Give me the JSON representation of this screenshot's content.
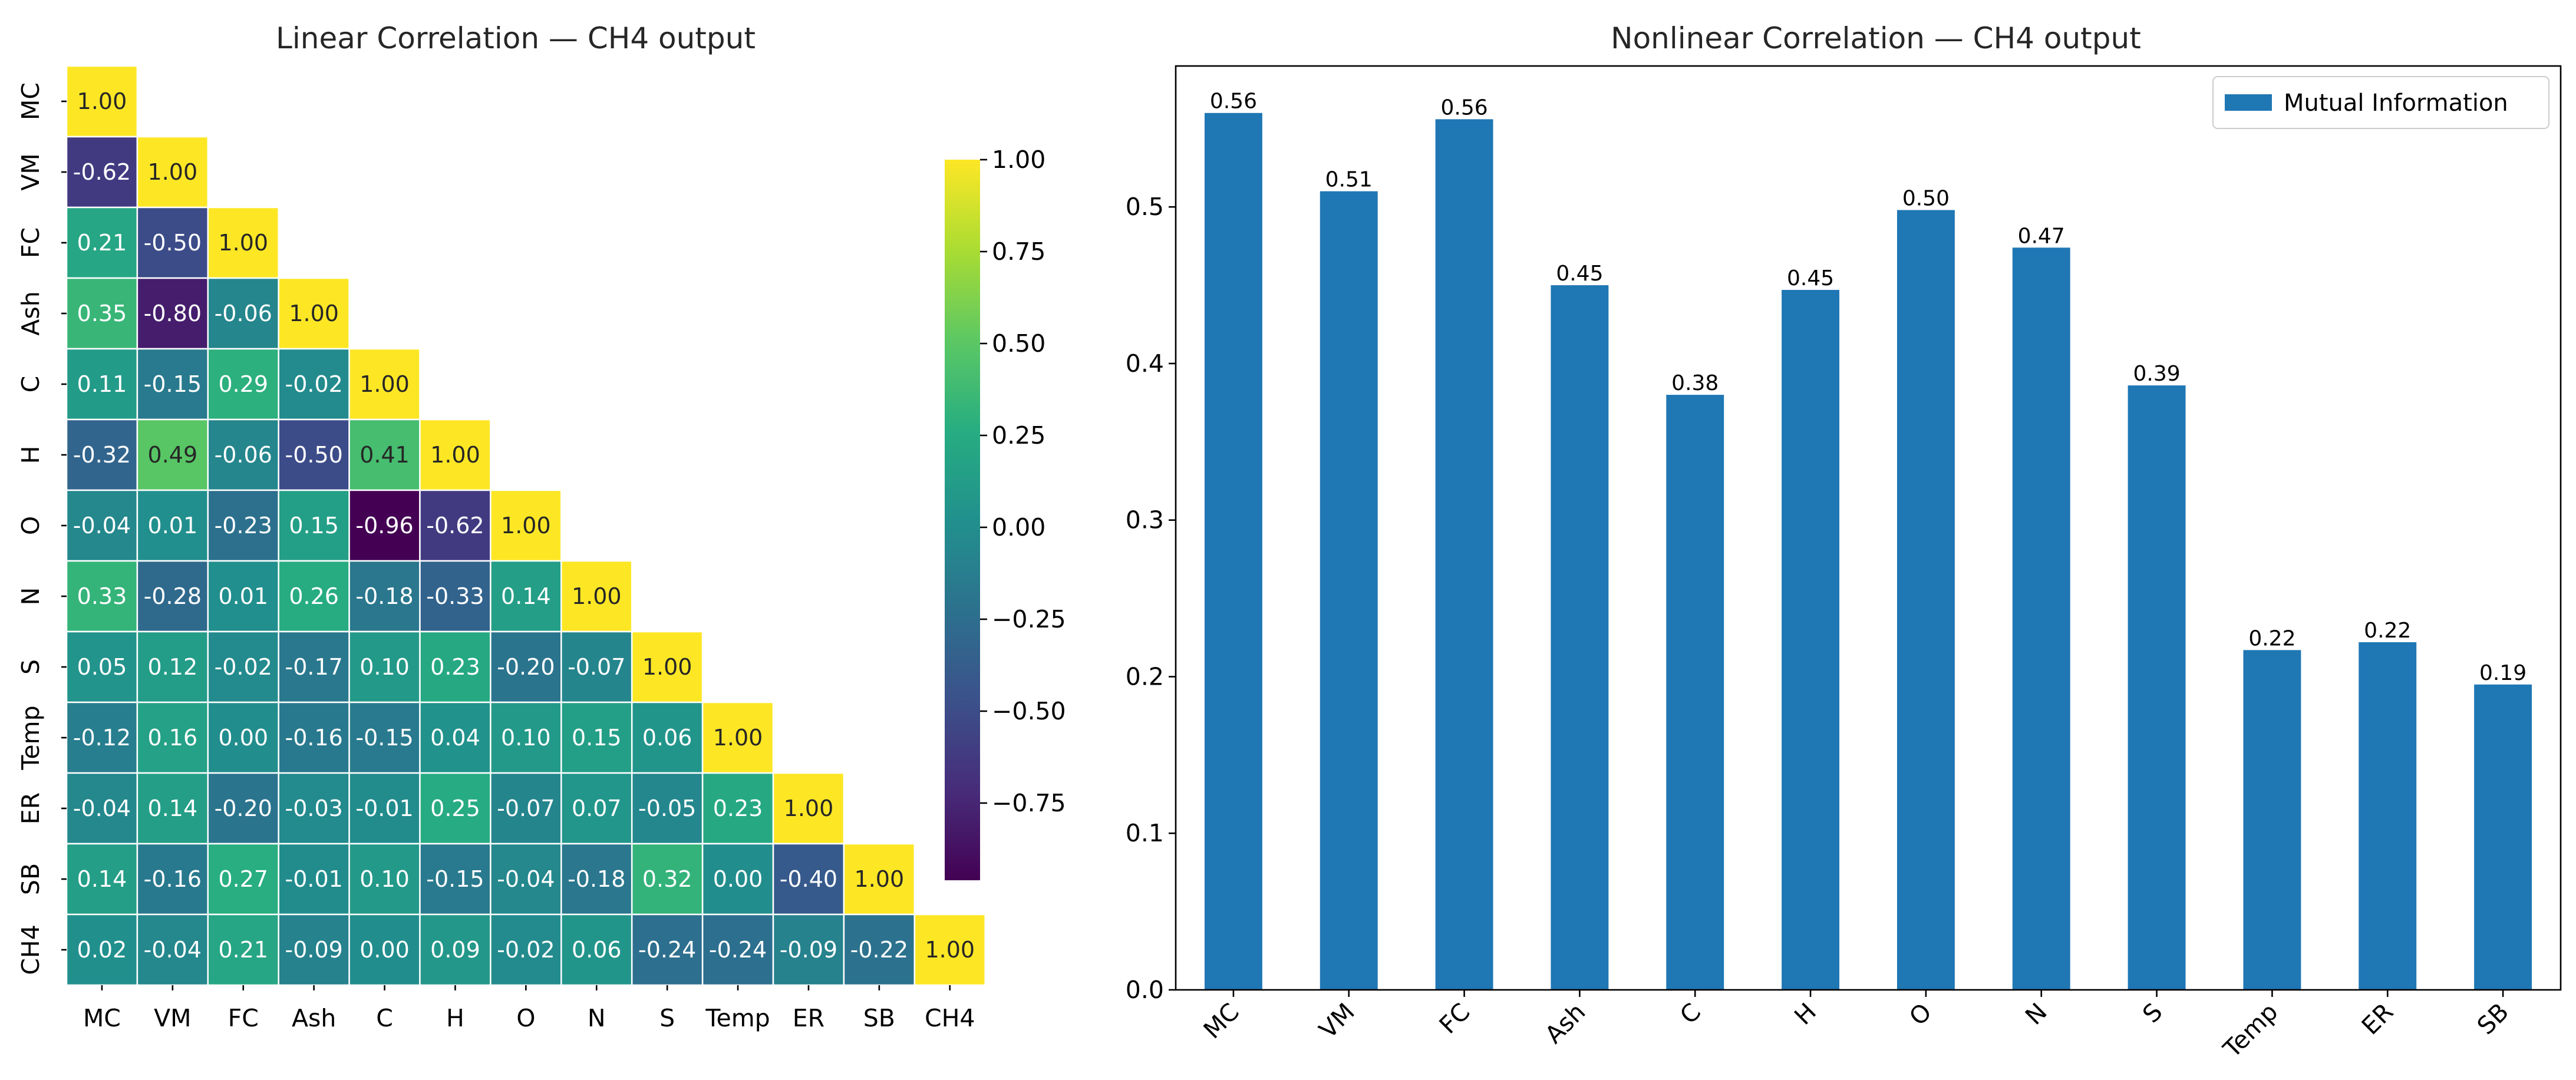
{
  "chart_data": [
    {
      "type": "heatmap",
      "title": "Linear Correlation — CH4 output",
      "variables": [
        "MC",
        "VM",
        "FC",
        "Ash",
        "C",
        "H",
        "O",
        "N",
        "S",
        "Temp",
        "ER",
        "SB",
        "CH4"
      ],
      "matrix_lower": [
        [
          1.0
        ],
        [
          -0.62,
          1.0
        ],
        [
          0.21,
          -0.5,
          1.0
        ],
        [
          0.35,
          -0.8,
          -0.06,
          1.0
        ],
        [
          0.11,
          -0.15,
          0.29,
          -0.02,
          1.0
        ],
        [
          -0.32,
          0.49,
          -0.06,
          -0.5,
          0.41,
          1.0
        ],
        [
          -0.04,
          0.01,
          -0.23,
          0.15,
          -0.96,
          -0.62,
          1.0
        ],
        [
          0.33,
          -0.28,
          0.01,
          0.26,
          -0.18,
          -0.33,
          0.14,
          1.0
        ],
        [
          0.05,
          0.12,
          -0.02,
          -0.17,
          0.1,
          0.23,
          -0.2,
          -0.07,
          1.0
        ],
        [
          -0.12,
          0.16,
          0.0,
          -0.16,
          -0.15,
          0.04,
          0.1,
          0.15,
          0.06,
          1.0
        ],
        [
          -0.04,
          0.14,
          -0.2,
          -0.03,
          -0.01,
          0.25,
          -0.07,
          0.07,
          -0.05,
          0.23,
          1.0
        ],
        [
          0.14,
          -0.16,
          0.27,
          -0.01,
          0.1,
          -0.15,
          -0.04,
          -0.18,
          0.32,
          0.0,
          -0.4,
          1.0
        ],
        [
          0.02,
          -0.04,
          0.21,
          -0.09,
          0.0,
          0.09,
          -0.02,
          0.06,
          -0.24,
          -0.24,
          -0.09,
          -0.22,
          1.0
        ]
      ],
      "colormap": "viridis",
      "color_range": [
        -0.96,
        1.0
      ],
      "colorbar_ticks": [
        1.0,
        0.75,
        0.5,
        0.25,
        0.0,
        -0.25,
        -0.5,
        -0.75
      ],
      "colorbar_tick_labels": [
        "1.00",
        "0.75",
        "0.50",
        "0.25",
        "0.00",
        "−0.25",
        "−0.50",
        "−0.75"
      ],
      "lower_triangle_only": true
    },
    {
      "type": "bar",
      "title": "Nonlinear Correlation — CH4 output",
      "categories": [
        "MC",
        "VM",
        "FC",
        "Ash",
        "C",
        "H",
        "O",
        "N",
        "S",
        "Temp",
        "ER",
        "SB"
      ],
      "series": [
        {
          "name": "Mutual Information",
          "values": [
            0.56,
            0.51,
            0.556,
            0.45,
            0.38,
            0.447,
            0.498,
            0.474,
            0.386,
            0.217,
            0.222,
            0.195
          ],
          "labels": [
            "0.56",
            "0.51",
            "0.56",
            "0.45",
            "0.38",
            "0.45",
            "0.50",
            "0.47",
            "0.39",
            "0.22",
            "0.22",
            "0.19"
          ]
        }
      ],
      "ylim": [
        0,
        0.59
      ],
      "yticks": [
        0.0,
        0.1,
        0.2,
        0.3,
        0.4,
        0.5
      ],
      "ytick_labels": [
        "0.0",
        "0.1",
        "0.2",
        "0.3",
        "0.4",
        "0.5"
      ],
      "legend_position": "top-right",
      "bar_color": "#1f77b4",
      "xtick_rotation": 45
    }
  ]
}
